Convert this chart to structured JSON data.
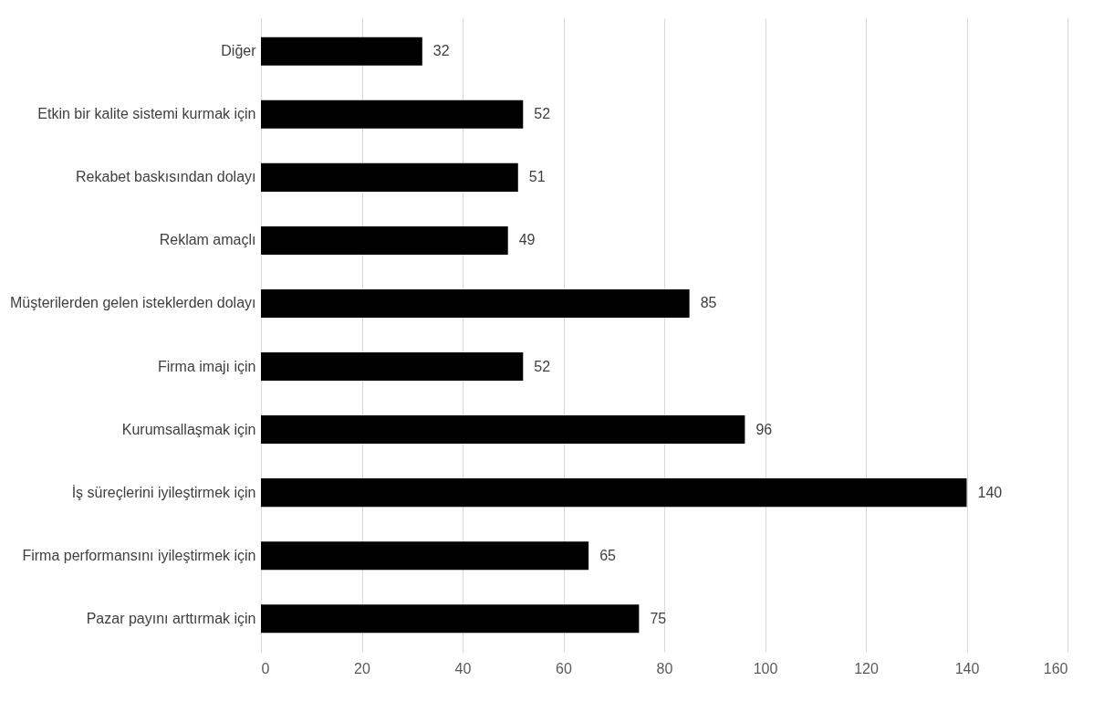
{
  "chart_data": {
    "type": "bar",
    "orientation": "horizontal",
    "categories": [
      "Diğer",
      "Etkin bir kalite sistemi kurmak için",
      "Rekabet baskısından dolayı",
      "Reklam amaçlı",
      "Müşterilerden gelen isteklerden dolayı",
      "Firma imajı için",
      "Kurumsallaşmak için",
      "İş süreçlerini iyileştirmek için",
      "Firma performansını iyileştirmek için",
      "Pazar payını arttırmak için"
    ],
    "values": [
      32,
      52,
      51,
      49,
      85,
      52,
      96,
      140,
      65,
      75
    ],
    "color": "#000000",
    "xlim": [
      0,
      160
    ],
    "xticks": [
      0,
      20,
      40,
      60,
      80,
      100,
      120,
      140,
      160
    ],
    "grid": "x",
    "data_labels": true
  }
}
